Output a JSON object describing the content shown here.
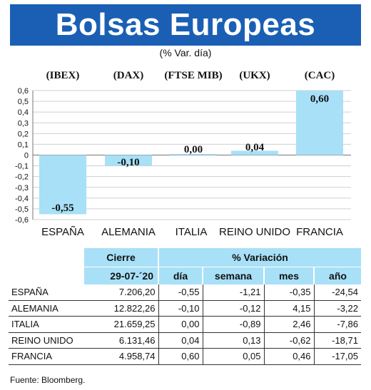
{
  "title": "Bolsas Europeas",
  "subtitle": "(% Var. día)",
  "chart_data": {
    "type": "bar",
    "categories": [
      "ESPAÑA",
      "ALEMANIA",
      "ITALIA",
      "REINO UNIDO",
      "FRANCIA"
    ],
    "indices": [
      "(IBEX)",
      "(DAX)",
      "(FTSE MIB)",
      "(UKX)",
      "(CAC)"
    ],
    "values": [
      -0.55,
      -0.1,
      0.0,
      0.04,
      0.6
    ],
    "value_labels": [
      "-0,55",
      "-0,10",
      "0,00",
      "0,04",
      "0,60"
    ],
    "ylim": [
      -0.6,
      0.6
    ],
    "yticks": [
      0.6,
      0.5,
      0.4,
      0.3,
      0.2,
      0.1,
      0,
      -0.1,
      -0.2,
      -0.3,
      -0.4,
      -0.5,
      -0.6
    ],
    "ytick_labels": [
      "0,6",
      "0,5",
      "0,4",
      "0,3",
      "0,2",
      "0,1",
      "0",
      "-0,1",
      "-0,2",
      "-0,3",
      "-0,4",
      "-0,5",
      "-0,6"
    ],
    "grid": true,
    "bar_color": "#a8e0f7"
  },
  "table": {
    "header_cierre": "Cierre",
    "header_variacion": "% Variación",
    "date": "29-07-´20",
    "columns": [
      "día",
      "semana",
      "mes",
      "año"
    ],
    "rows": [
      {
        "name": "ESPAÑA",
        "cierre": "7.206,20",
        "dia": "-0,55",
        "semana": "-1,21",
        "mes": "-0,35",
        "anio": "-24,54"
      },
      {
        "name": "ALEMANIA",
        "cierre": "12.822,26",
        "dia": "-0,10",
        "semana": "-0,12",
        "mes": "4,15",
        "anio": "-3,22"
      },
      {
        "name": "ITALIA",
        "cierre": "21.659,25",
        "dia": "0,00",
        "semana": "-0,89",
        "mes": "2,46",
        "anio": "-7,86"
      },
      {
        "name": "REINO UNIDO",
        "cierre": "6.131,46",
        "dia": "0,04",
        "semana": "0,13",
        "mes": "-0,62",
        "anio": "-18,71"
      },
      {
        "name": "FRANCIA",
        "cierre": "4.958,74",
        "dia": "0,60",
        "semana": "0,05",
        "mes": "0,46",
        "anio": "-17,05"
      }
    ]
  },
  "source": "Fuente: Bloomberg."
}
